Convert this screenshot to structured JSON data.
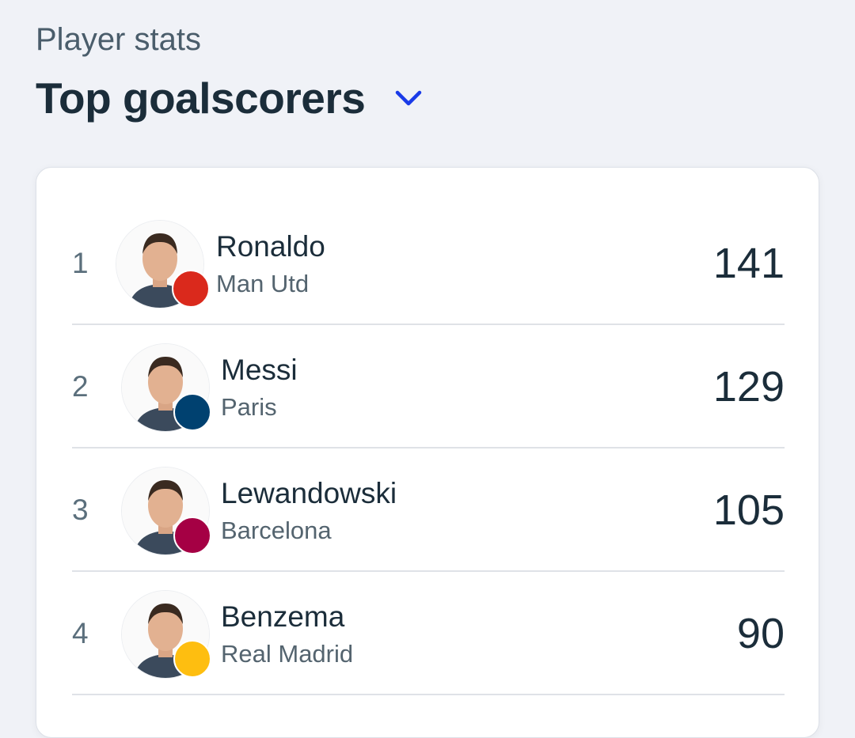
{
  "header": {
    "subtitle": "Player stats",
    "title": "Top goalscorers",
    "dropdown_icon": "chevron-down-icon",
    "accent_color": "#1a3be8"
  },
  "players": [
    {
      "rank": "1",
      "name": "Ronaldo",
      "club": "Man Utd",
      "goals": "141",
      "badge_color": "#da291c"
    },
    {
      "rank": "2",
      "name": "Messi",
      "club": "Paris",
      "goals": "129",
      "badge_color": "#004170"
    },
    {
      "rank": "3",
      "name": "Lewandowski",
      "club": "Barcelona",
      "goals": "105",
      "badge_color": "#a50044"
    },
    {
      "rank": "4",
      "name": "Benzema",
      "club": "Real Madrid",
      "goals": "90",
      "badge_color": "#febe10"
    }
  ]
}
